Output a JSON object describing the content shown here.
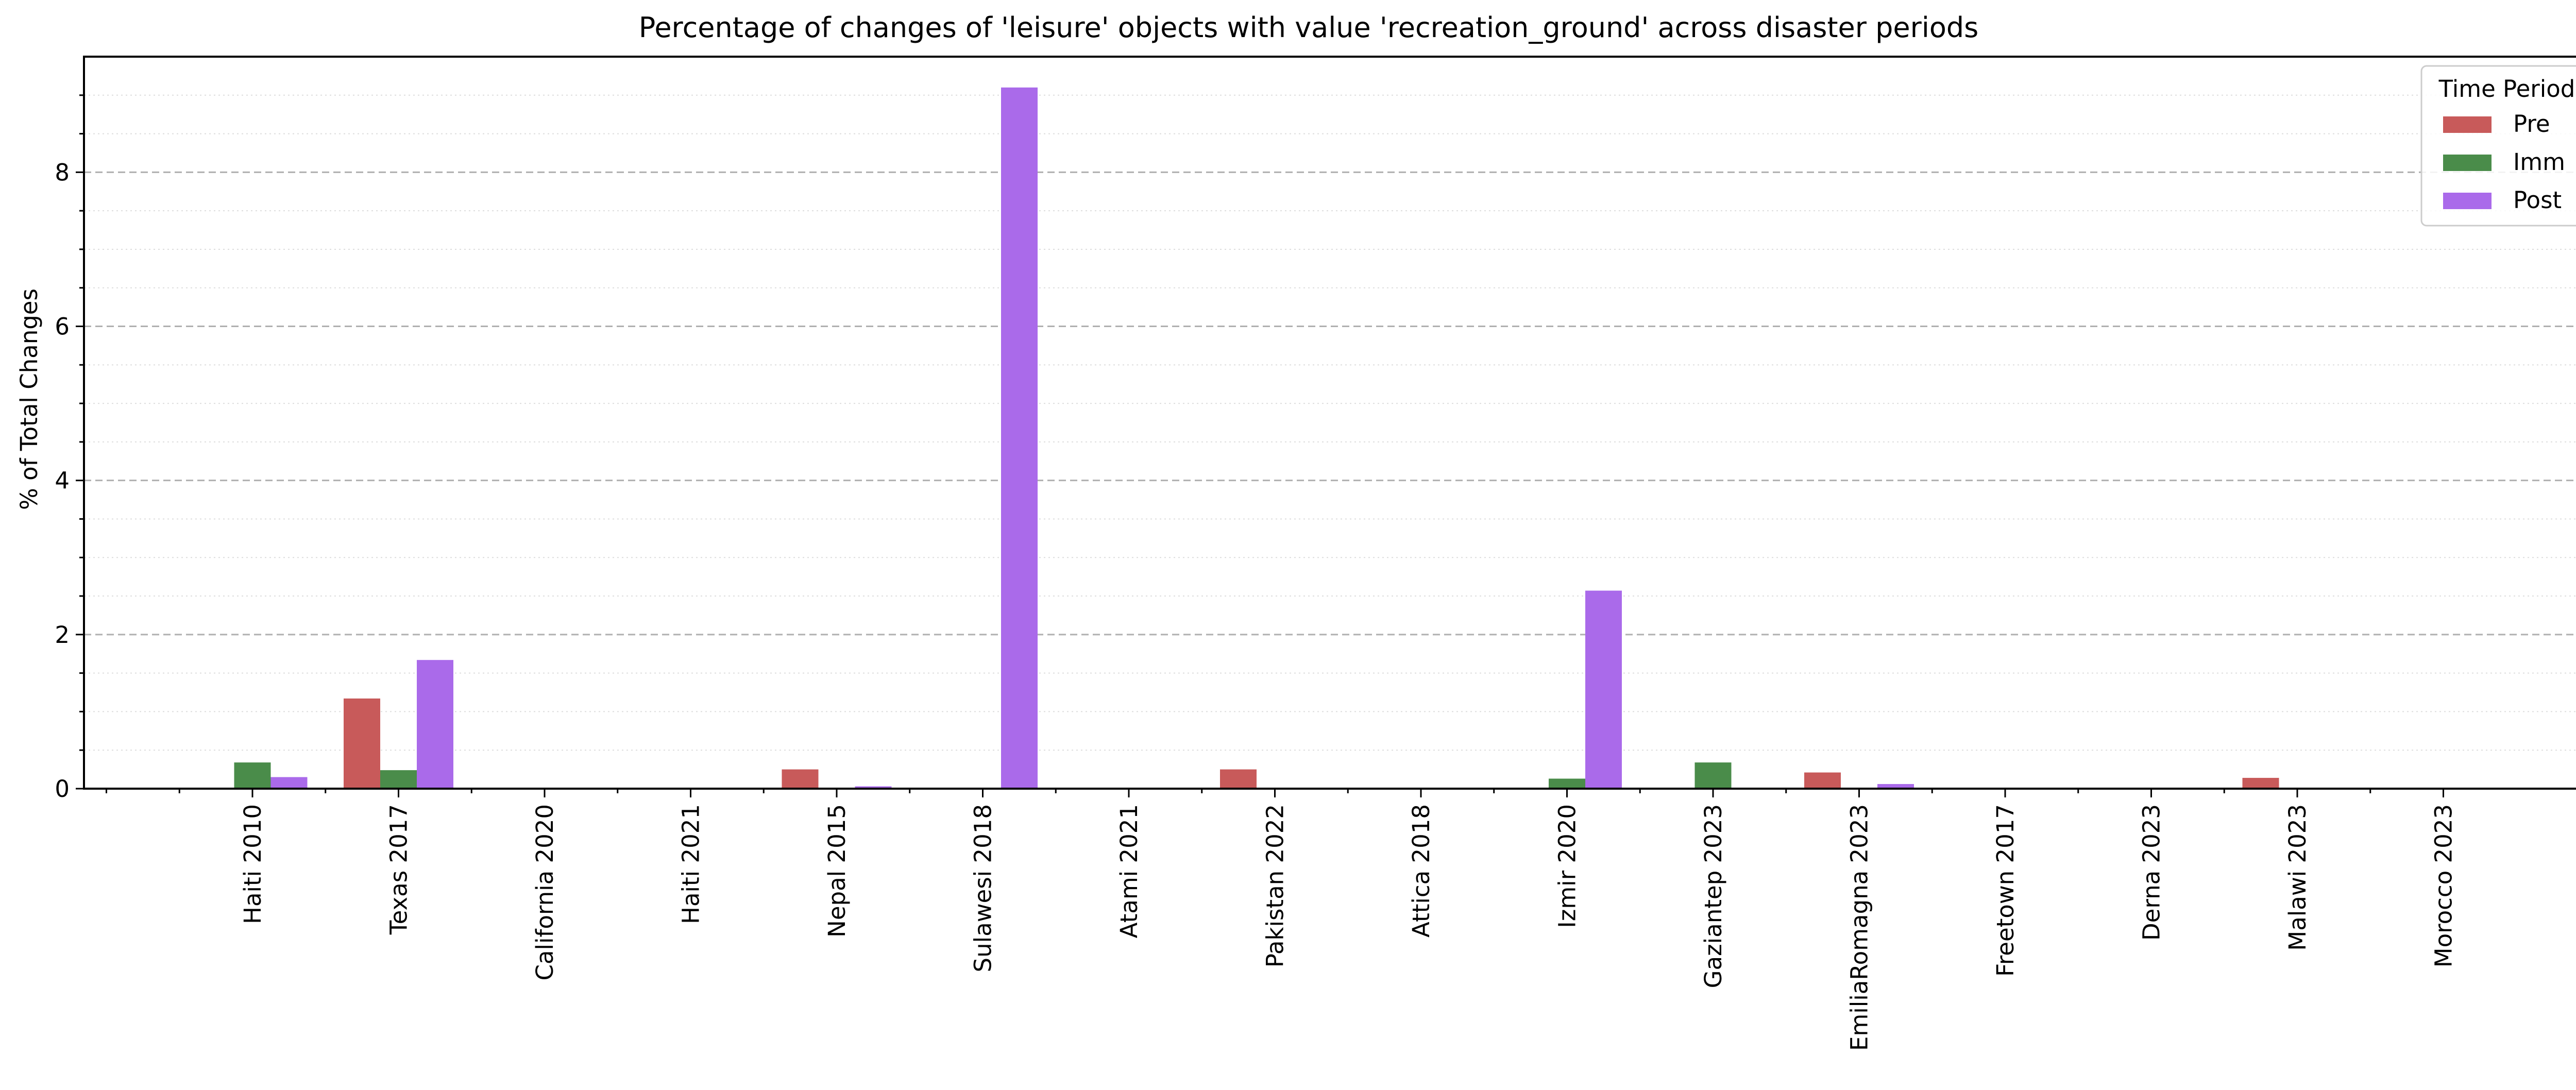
{
  "chart_data": {
    "type": "bar",
    "title": "Percentage of changes of 'leisure' objects with value 'recreation_ground' across disaster periods",
    "xlabel": "",
    "ylabel": "% of Total Changes",
    "ylim": [
      0,
      9.5
    ],
    "yticks": [
      0,
      2,
      4,
      6,
      8
    ],
    "grid": "horizontal dashed major, dotted minor",
    "legend_position": "top-right",
    "legend_title": "Time Period",
    "categories": [
      "Haiti 2010",
      "Texas 2017",
      "California 2020",
      "Haiti 2021",
      "Nepal 2015",
      "Sulawesi 2018",
      "Atami 2021",
      "Pakistan 2022",
      "Attica 2018",
      "Izmir 2020",
      "Gaziantep 2023",
      "EmiliaRomagna 2023",
      "Freetown 2017",
      "Derna 2023",
      "Malawi 2023",
      "Morocco 2023"
    ],
    "series": [
      {
        "name": "Pre",
        "color": "#c85a5a",
        "values": [
          0,
          1.17,
          0,
          0,
          0.25,
          0,
          0,
          0.25,
          0,
          0,
          0,
          0.21,
          0,
          0,
          0.14,
          0
        ]
      },
      {
        "name": "Imm",
        "color": "#4a8c4a",
        "values": [
          0.34,
          0.24,
          0,
          0,
          0,
          0,
          0,
          0,
          0,
          0.13,
          0.34,
          0,
          0,
          0,
          0,
          0
        ]
      },
      {
        "name": "Post",
        "color": "#aa6aea",
        "values": [
          0.15,
          1.67,
          0,
          0,
          0.03,
          9.1,
          0,
          0,
          0,
          2.57,
          0,
          0.06,
          0,
          0,
          0,
          0.01
        ]
      }
    ]
  }
}
